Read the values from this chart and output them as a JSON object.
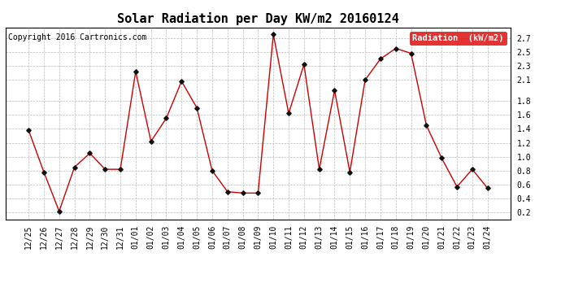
{
  "title": "Solar Radiation per Day KW/m2 20160124",
  "copyright": "Copyright 2016 Cartronics.com",
  "legend_label": "Radiation  (kW/m2)",
  "x_labels": [
    "12/25",
    "12/26",
    "12/27",
    "12/28",
    "12/29",
    "12/30",
    "12/31",
    "01/01",
    "01/02",
    "01/03",
    "01/04",
    "01/05",
    "01/06",
    "01/07",
    "01/08",
    "01/09",
    "01/10",
    "01/11",
    "01/12",
    "01/13",
    "01/14",
    "01/15",
    "01/16",
    "01/17",
    "01/18",
    "01/19",
    "01/20",
    "01/21",
    "01/22",
    "01/23",
    "01/24"
  ],
  "values": [
    1.38,
    0.78,
    0.22,
    0.85,
    1.05,
    0.82,
    0.82,
    2.22,
    1.22,
    1.55,
    2.08,
    1.7,
    0.8,
    0.5,
    0.48,
    0.48,
    2.75,
    1.62,
    2.32,
    0.82,
    1.95,
    0.78,
    2.1,
    2.4,
    2.55,
    2.48,
    1.45,
    0.98,
    0.57,
    0.82,
    0.55
  ],
  "ylim": [
    0.1,
    2.85
  ],
  "yticks": [
    0.2,
    0.4,
    0.6,
    0.8,
    1.0,
    1.2,
    1.4,
    1.6,
    1.8,
    2.1,
    2.3,
    2.5,
    2.7
  ],
  "line_color": "#cc0000",
  "marker_color": "#111111",
  "bg_color": "#ffffff",
  "grid_color": "#bbbbbb",
  "legend_bg": "#dd0000",
  "legend_text_color": "#ffffff",
  "title_fontsize": 11,
  "copyright_fontsize": 7,
  "tick_fontsize": 7,
  "legend_fontsize": 7.5
}
